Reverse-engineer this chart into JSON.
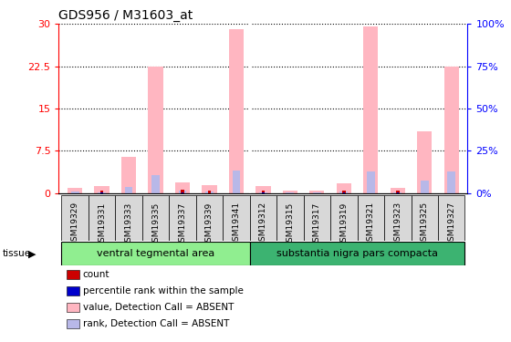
{
  "title": "GDS956 / M31603_at",
  "samples": [
    "GSM19329",
    "GSM19331",
    "GSM19333",
    "GSM19335",
    "GSM19337",
    "GSM19339",
    "GSM19341",
    "GSM19312",
    "GSM19315",
    "GSM19317",
    "GSM19319",
    "GSM19321",
    "GSM19323",
    "GSM19325",
    "GSM19327"
  ],
  "groups": [
    {
      "label": "ventral tegmental area",
      "start": 0,
      "end": 7,
      "color": "#90EE90"
    },
    {
      "label": "substantia nigra pars compacta",
      "start": 7,
      "end": 15,
      "color": "#3CB371"
    }
  ],
  "value_absent": [
    1.0,
    1.2,
    6.5,
    22.5,
    2.0,
    1.5,
    29.0,
    1.2,
    0.5,
    0.5,
    1.8,
    29.5,
    1.0,
    11.0,
    22.5
  ],
  "rank_absent": [
    1.0,
    0.5,
    3.8,
    10.5,
    1.5,
    0.8,
    13.5,
    0.5,
    0.3,
    0.3,
    1.0,
    13.0,
    0.5,
    7.5,
    13.0
  ],
  "count_present": [
    0.0,
    0.5,
    0.0,
    0.0,
    0.7,
    0.5,
    0.0,
    0.5,
    0.0,
    0.0,
    0.5,
    0.0,
    0.5,
    0.0,
    0.0
  ],
  "rank_present": [
    0.2,
    0.4,
    0.0,
    0.0,
    0.4,
    0.2,
    0.0,
    0.3,
    0.0,
    0.0,
    0.3,
    0.0,
    0.3,
    0.0,
    0.0
  ],
  "ylim_left": [
    0,
    30
  ],
  "ylim_right": [
    0,
    100
  ],
  "yticks_left": [
    0,
    7.5,
    15,
    22.5,
    30
  ],
  "yticks_right": [
    0,
    25,
    50,
    75,
    100
  ],
  "color_value_absent": "#FFB6C1",
  "color_rank_absent": "#B8B8E8",
  "color_count": "#CC0000",
  "color_rank_present": "#0000CC",
  "background_color": "#ffffff",
  "tick_bg_color": "#D8D8D8"
}
